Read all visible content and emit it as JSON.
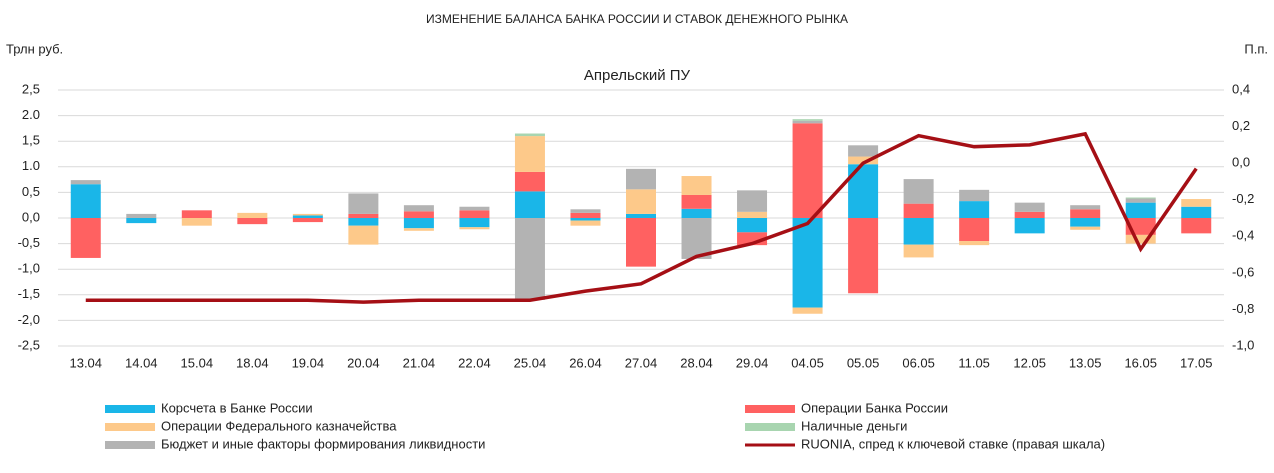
{
  "chart_data": {
    "type": "bar",
    "title": "ИЗМЕНЕНИЕ БАЛАНСА БАНКА РОССИИ И СТАВОК ДЕНЕЖНОГО РЫНКА",
    "subtitle": "Апрельский ПУ",
    "y_label": "Трлн руб.",
    "y2_label": "П.п.",
    "stacked": true,
    "grid": true,
    "categories": [
      "13.04",
      "14.04",
      "15.04",
      "18.04",
      "19.04",
      "20.04",
      "21.04",
      "22.04",
      "25.04",
      "26.04",
      "27.04",
      "28.04",
      "29.04",
      "04.05",
      "05.05",
      "06.05",
      "11.05",
      "12.05",
      "13.05",
      "16.05",
      "17.05"
    ],
    "series": [
      {
        "name": "Корсчета в Банке России",
        "color": "#1ab6e8",
        "values": [
          0.66,
          -0.1,
          0,
          0,
          0.05,
          -0.15,
          -0.2,
          -0.18,
          0.52,
          -0.05,
          0.08,
          0.18,
          -0.28,
          -1.75,
          1.05,
          -0.52,
          0.33,
          -0.3,
          -0.17,
          0.3,
          0.22
        ]
      },
      {
        "name": "Операции Банка России",
        "color": "#ff6161",
        "values": [
          -0.78,
          0,
          0.15,
          -0.12,
          -0.08,
          0.08,
          0.13,
          0.15,
          0.38,
          0.1,
          -0.95,
          0.27,
          -0.25,
          1.85,
          -1.47,
          0.28,
          -0.45,
          0.12,
          0.17,
          -0.33,
          -0.3
        ]
      },
      {
        "name": "Операции Федерального казначейства",
        "color": "#fdc98a",
        "values": [
          0,
          0,
          -0.15,
          0.1,
          0.03,
          -0.37,
          -0.05,
          -0.04,
          0.7,
          -0.1,
          0.48,
          0.37,
          0.12,
          -0.12,
          0.15,
          -0.25,
          -0.08,
          0,
          -0.06,
          -0.17,
          0.15
        ]
      },
      {
        "name": "Наличные деньги",
        "color": "#a8d5b0",
        "values": [
          0,
          0,
          0,
          0,
          0,
          0,
          0,
          0,
          0.05,
          0,
          0,
          0,
          0,
          0.03,
          0,
          0,
          0,
          0,
          0,
          0.02,
          0
        ]
      },
      {
        "name": "Бюджет и иные факторы формирования ликвидности",
        "color": "#b3b3b3",
        "values": [
          0.08,
          0.08,
          0,
          0,
          0,
          0.4,
          0.12,
          0.07,
          -1.6,
          0.07,
          0.4,
          -0.8,
          0.42,
          0.05,
          0.22,
          0.48,
          0.22,
          0.18,
          0.08,
          0.08,
          0
        ]
      },
      {
        "name": "RUONIA, спред к ключевой ставке (правая шкала)",
        "color": "#a50f15",
        "type": "line",
        "axis": "y2",
        "values": [
          -0.75,
          -0.75,
          -0.75,
          -0.75,
          -0.75,
          -0.76,
          -0.75,
          -0.75,
          -0.75,
          -0.7,
          -0.66,
          -0.51,
          -0.44,
          -0.33,
          0.0,
          0.15,
          0.09,
          0.1,
          0.16,
          -0.47,
          -0.03
        ]
      }
    ],
    "ylim": [
      -2.5,
      2.5
    ],
    "yticks": [
      {
        "value": 2.5,
        "label": "2,5"
      },
      {
        "value": 2.0,
        "label": "2.0"
      },
      {
        "value": 1.5,
        "label": "1,5"
      },
      {
        "value": 1.0,
        "label": "1.0"
      },
      {
        "value": 0.5,
        "label": "0,5"
      },
      {
        "value": 0,
        "label": "0,0"
      },
      {
        "value": -0.5,
        "label": "-0,5"
      },
      {
        "value": -1.0,
        "label": "-1,0"
      },
      {
        "value": -1.5,
        "label": "-1,5"
      },
      {
        "value": -2.0,
        "label": "-2,0"
      },
      {
        "value": -2.5,
        "label": "-2,5"
      }
    ],
    "y2lim": [
      -1.0,
      0.4
    ],
    "y2ticks": [
      {
        "value": 0.4,
        "label": "0,4"
      },
      {
        "value": 0.2,
        "label": "0,2"
      },
      {
        "value": 0,
        "label": "0,0"
      },
      {
        "value": -0.2,
        "label": "-0,2"
      },
      {
        "value": -0.4,
        "label": "-0,4"
      },
      {
        "value": -0.6,
        "label": "-0,6"
      },
      {
        "value": -0.8,
        "label": "-0,8"
      },
      {
        "value": -1.0,
        "label": "-1,0"
      }
    ]
  }
}
